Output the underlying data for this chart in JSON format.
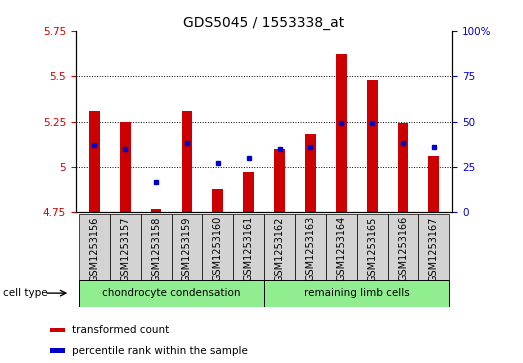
{
  "title": "GDS5045 / 1553338_at",
  "samples": [
    "GSM1253156",
    "GSM1253157",
    "GSM1253158",
    "GSM1253159",
    "GSM1253160",
    "GSM1253161",
    "GSM1253162",
    "GSM1253163",
    "GSM1253164",
    "GSM1253165",
    "GSM1253166",
    "GSM1253167"
  ],
  "transformed_count": [
    5.31,
    5.25,
    4.77,
    5.31,
    4.88,
    4.97,
    5.1,
    5.18,
    5.62,
    5.48,
    5.24,
    5.06
  ],
  "percentile_rank": [
    37,
    35,
    17,
    38,
    27,
    30,
    35,
    36,
    49,
    49,
    38,
    36
  ],
  "ylim_left": [
    4.75,
    5.75
  ],
  "ylim_right": [
    0,
    100
  ],
  "yticks_left": [
    4.75,
    5.0,
    5.25,
    5.5,
    5.75
  ],
  "ytick_labels_left": [
    "4.75",
    "5",
    "5.25",
    "5.5",
    "5.75"
  ],
  "yticks_right": [
    0,
    25,
    50,
    75,
    100
  ],
  "ytick_labels_right": [
    "0",
    "25",
    "50",
    "75",
    "100%"
  ],
  "bar_color": "#cc0000",
  "dot_color": "#0000cc",
  "baseline": 4.75,
  "group1_label": "chondrocyte condensation",
  "group2_label": "remaining limb cells",
  "group1_indices": [
    0,
    1,
    2,
    3,
    4,
    5
  ],
  "group2_indices": [
    6,
    7,
    8,
    9,
    10,
    11
  ],
  "cell_type_label": "cell type",
  "legend1": "transformed count",
  "legend2": "percentile rank within the sample",
  "bar_color_hex": "#cc0000",
  "dot_color_hex": "#0000cc",
  "group_bg_color": "#d3d3d3",
  "group_label_bg": "#90ee90",
  "title_fontsize": 10,
  "tick_fontsize": 7.5,
  "label_fontsize": 7,
  "group_fontsize": 7.5,
  "legend_fontsize": 7.5
}
